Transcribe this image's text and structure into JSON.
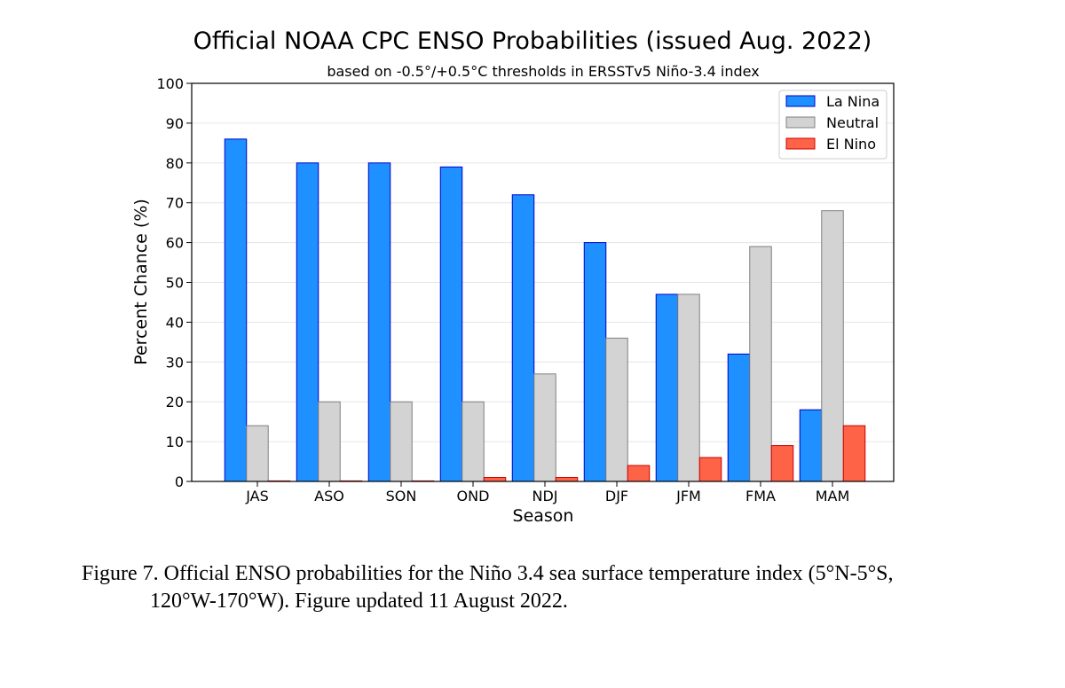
{
  "chart_data": {
    "type": "bar",
    "title": "Official NOAA CPC ENSO Probabilities (issued Aug. 2022)",
    "subtitle": "based on -0.5°/+0.5°C thresholds in ERSSTv5 Niño-3.4 index",
    "xlabel": "Season",
    "ylabel": "Percent Chance (%)",
    "ylim": [
      0,
      100
    ],
    "yticks": [
      0,
      10,
      20,
      30,
      40,
      50,
      60,
      70,
      80,
      90,
      100
    ],
    "grid": true,
    "legend_position": "top-right",
    "categories": [
      "JAS",
      "ASO",
      "SON",
      "OND",
      "NDJ",
      "DJF",
      "JFM",
      "FMA",
      "MAM"
    ],
    "series": [
      {
        "name": "La Nina",
        "color": "#1e90ff",
        "edge": "#0000cc",
        "values": [
          86,
          80,
          80,
          79,
          72,
          60,
          47,
          32,
          18
        ]
      },
      {
        "name": "Neutral",
        "color": "#d3d3d3",
        "edge": "#808080",
        "values": [
          14,
          20,
          20,
          20,
          27,
          36,
          47,
          59,
          68
        ]
      },
      {
        "name": "El Nino",
        "color": "#ff6347",
        "edge": "#cc0000",
        "values": [
          0,
          0,
          0,
          1,
          1,
          4,
          6,
          9,
          14
        ]
      }
    ]
  },
  "caption": {
    "line1": "Figure 7. Official ENSO probabilities for the Niño 3.4 sea surface temperature index (5°N-5°S,",
    "line2": "120°W-170°W). Figure updated 11 August 2022."
  }
}
